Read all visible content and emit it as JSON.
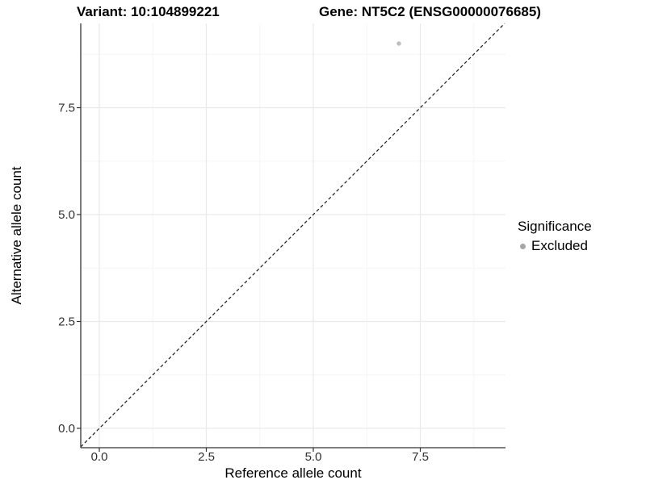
{
  "chart_data": {
    "type": "scatter",
    "titles": {
      "variant": "Variant: 10:104899221",
      "gene": "Gene: NT5C2 (ENSG00000076685)"
    },
    "xlabel": "Reference allele count",
    "ylabel": "Alternative allele count",
    "xlim": [
      -0.45,
      9.45
    ],
    "ylim": [
      -0.45,
      9.45
    ],
    "x_ticks": [
      0.0,
      2.5,
      5.0,
      7.5
    ],
    "y_ticks": [
      0.0,
      2.5,
      5.0,
      7.5
    ],
    "x_tick_labels": [
      "0.0",
      "2.5",
      "5.0",
      "7.5"
    ],
    "y_tick_labels": [
      "0.0",
      "2.5",
      "5.0",
      "7.5"
    ],
    "minor_ticks": [
      1.25,
      3.75,
      6.25,
      8.75
    ],
    "grid": "major+minor",
    "series": [
      {
        "name": "Excluded",
        "marker": "circle",
        "color": "#bdbdbd",
        "points": [
          {
            "x": 7,
            "y": 9
          }
        ]
      }
    ],
    "reference_line": {
      "type": "identity y=x",
      "style": "dashed",
      "color": "#1a1a1a"
    },
    "legend": {
      "title": "Significance",
      "position": "right",
      "entries": [
        {
          "label": "Excluded",
          "marker": "circle",
          "color": "#a6a6a6"
        }
      ]
    },
    "colors": {
      "background": "#ffffff",
      "axis_line": "#333333",
      "tick_label": "#303030",
      "grid_major": "#e9e9e9",
      "grid_minor": "#f5f5f5"
    }
  }
}
